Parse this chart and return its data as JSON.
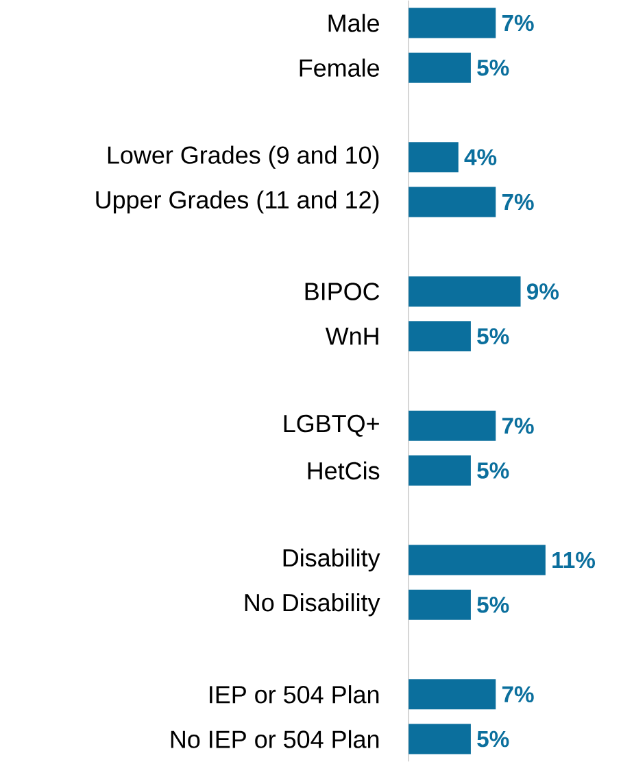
{
  "chart_data": {
    "type": "bar",
    "orientation": "horizontal",
    "color": "#0b6f9d",
    "tick_labels": "y",
    "categories": [
      "Male",
      "Female",
      null,
      "Lower Grades (9 and 10)",
      "Upper Grades (11 and 12)",
      null,
      "BIPOC",
      "WnH",
      null,
      "LGBTQ+",
      "HetCis",
      null,
      "Disability",
      "No Disability",
      null,
      "IEP or 504 Plan",
      "No IEP or 504 Plan"
    ],
    "values": [
      7,
      5,
      null,
      4,
      7,
      null,
      9,
      5,
      null,
      7,
      5,
      null,
      11,
      5,
      null,
      7,
      5
    ],
    "value_labels": [
      "7%",
      "5%",
      null,
      "4%",
      "7%",
      null,
      "9%",
      "5%",
      null,
      "7%",
      "5%",
      null,
      "11%",
      "5%",
      null,
      "7%",
      "5%"
    ]
  }
}
